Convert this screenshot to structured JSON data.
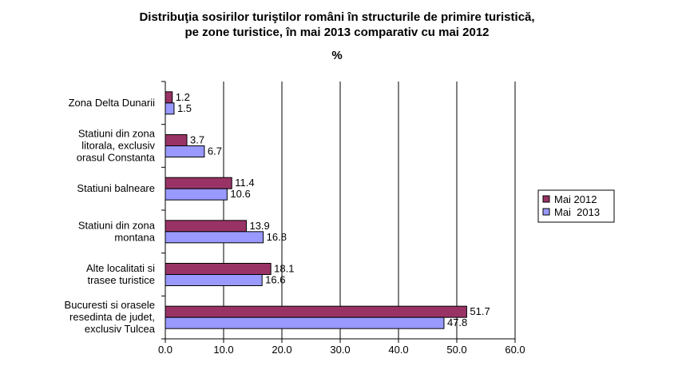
{
  "chart_data": {
    "type": "bar",
    "orientation": "horizontal",
    "title": "Distribuţia sosirilor turiştilor români în structurile de primire turistică,",
    "subtitle": "pe zone turistice, în mai 2013 comparativ cu mai 2012",
    "unit": "%",
    "categories": [
      [
        "Zona Delta Dunarii"
      ],
      [
        "Statiuni din zona",
        "litorala, exclusiv",
        "orasul Constanta"
      ],
      [
        "Statiuni balneare"
      ],
      [
        "Statiuni din zona",
        "montana"
      ],
      [
        "Alte localitati si",
        "trasee turistice"
      ],
      [
        "Bucuresti si orasele",
        "resedinta de judet,",
        "exclusiv Tulcea"
      ]
    ],
    "series": [
      {
        "name": "Mai 2012",
        "color": "#993366",
        "values": [
          1.2,
          3.7,
          11.4,
          13.9,
          18.1,
          51.7
        ]
      },
      {
        "name": "Mai  2013",
        "color": "#9999ff",
        "values": [
          1.5,
          6.7,
          10.6,
          16.8,
          16.6,
          47.8
        ]
      }
    ],
    "xlim": [
      0,
      60
    ],
    "xticks": [
      "0.0",
      "10.0",
      "20.0",
      "30.0",
      "40.0",
      "50.0",
      "60.0"
    ],
    "grid": true,
    "legend": "right"
  }
}
